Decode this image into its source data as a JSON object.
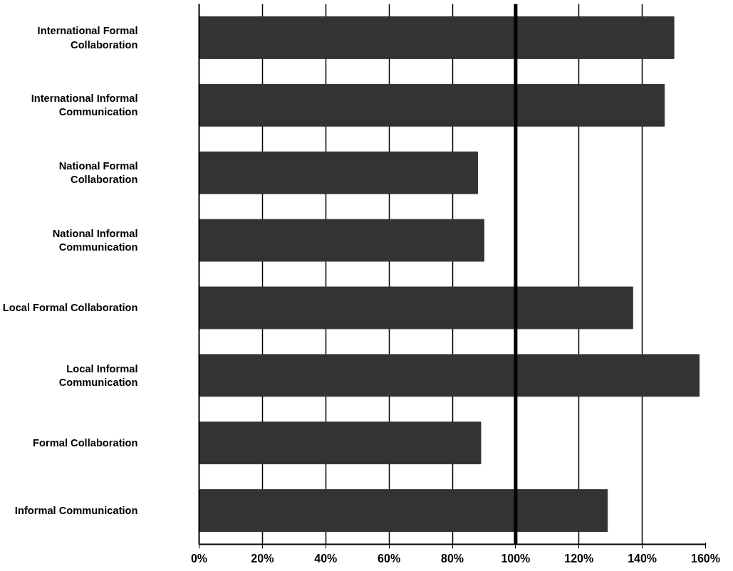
{
  "chart_data": {
    "type": "bar",
    "orientation": "horizontal",
    "categories": [
      "International Formal\nCollaboration",
      "International Informal\nCommunication",
      "National Formal\nCollaboration",
      "National Informal\nCommunication",
      "Local Formal Collaboration",
      "Local Informal\nCommunication",
      "Formal Collaboration",
      "Informal Communication"
    ],
    "values": [
      150,
      147,
      88,
      90,
      137,
      158,
      89,
      129
    ],
    "color": "#333333",
    "xlim": [
      0,
      160
    ],
    "xticks": [
      {
        "value": 0,
        "label": "0%"
      },
      {
        "value": 20,
        "label": "20%"
      },
      {
        "value": 40,
        "label": "40%"
      },
      {
        "value": 60,
        "label": "60%"
      },
      {
        "value": 80,
        "label": "80%"
      },
      {
        "value": 100,
        "label": "100%"
      },
      {
        "value": 120,
        "label": "120%"
      },
      {
        "value": 140,
        "label": "140%"
      },
      {
        "value": 160,
        "label": "160%"
      }
    ],
    "grid": "x",
    "ref_lines": [
      {
        "axis": "x",
        "value": 100,
        "label": null,
        "color": "#000000"
      }
    ]
  }
}
